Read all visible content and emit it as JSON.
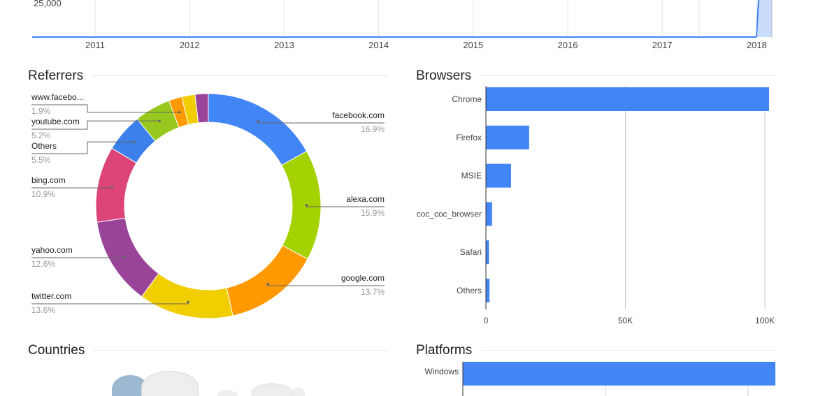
{
  "colors": {
    "bar": "#4285f4",
    "grid": "#cccccc",
    "rule": "#e6e6e6",
    "title": "#222222",
    "label": "#444444",
    "muted": "#999999",
    "timeline_fill": "#c9dcfc"
  },
  "timeline": {
    "title": "",
    "y_tick_label": "25,000",
    "x_labels": [
      "2011",
      "2012",
      "2013",
      "2014",
      "2015",
      "2016",
      "2017",
      "2018"
    ]
  },
  "sections": {
    "referrers": "Referrers",
    "browsers": "Browsers",
    "countries": "Countries",
    "platforms": "Platforms"
  },
  "chart_data": [
    {
      "type": "pie",
      "title": "Referrers",
      "donut": true,
      "slices": [
        {
          "label": "facebook.com",
          "value": 16.9,
          "display": "16.9%",
          "color": "#4285f4"
        },
        {
          "label": "alexa.com",
          "value": 15.9,
          "display": "15.9%",
          "color": "#a4d200"
        },
        {
          "label": "google.com",
          "value": 13.7,
          "display": "13.7%",
          "color": "#ff9900"
        },
        {
          "label": "twitter.com",
          "value": 13.6,
          "display": "13.6%",
          "color": "#f1ce00"
        },
        {
          "label": "yahoo.com",
          "value": 12.6,
          "display": "12.6%",
          "color": "#994499"
        },
        {
          "label": "bing.com",
          "value": 10.9,
          "display": "10.9%",
          "color": "#dd4477"
        },
        {
          "label": "Others",
          "value": 5.5,
          "display": "5.5%",
          "color": "#3b80eb"
        },
        {
          "label": "youtube.com",
          "value": 5.2,
          "display": "5.2%",
          "color": "#97c81d"
        },
        {
          "label": "www.facebo...",
          "value": 1.9,
          "display": "1.9%",
          "color": "#ff9900"
        },
        {
          "label": "",
          "value": 1.9,
          "display": "",
          "color": "#f1ce00"
        },
        {
          "label": "",
          "value": 1.9,
          "display": "",
          "color": "#994499"
        }
      ]
    },
    {
      "type": "bar",
      "orientation": "horizontal",
      "title": "Browsers",
      "categories": [
        "Chrome",
        "Firefox",
        "MSIE",
        "coc_coc_browser",
        "Safari",
        "Others"
      ],
      "values": [
        101500,
        15500,
        9000,
        2200,
        1100,
        1300
      ],
      "xlim": [
        0,
        104000
      ],
      "ticks": [
        {
          "value": 0,
          "label": "0"
        },
        {
          "value": 50000,
          "label": "50K"
        },
        {
          "value": 100000,
          "label": "100K"
        }
      ],
      "grid": true
    },
    {
      "type": "bar",
      "orientation": "horizontal",
      "title": "Platforms",
      "categories": [
        "Windows"
      ],
      "values": [
        100000
      ],
      "xlim": [
        0,
        100000
      ],
      "ticks": [],
      "grid": true
    }
  ]
}
